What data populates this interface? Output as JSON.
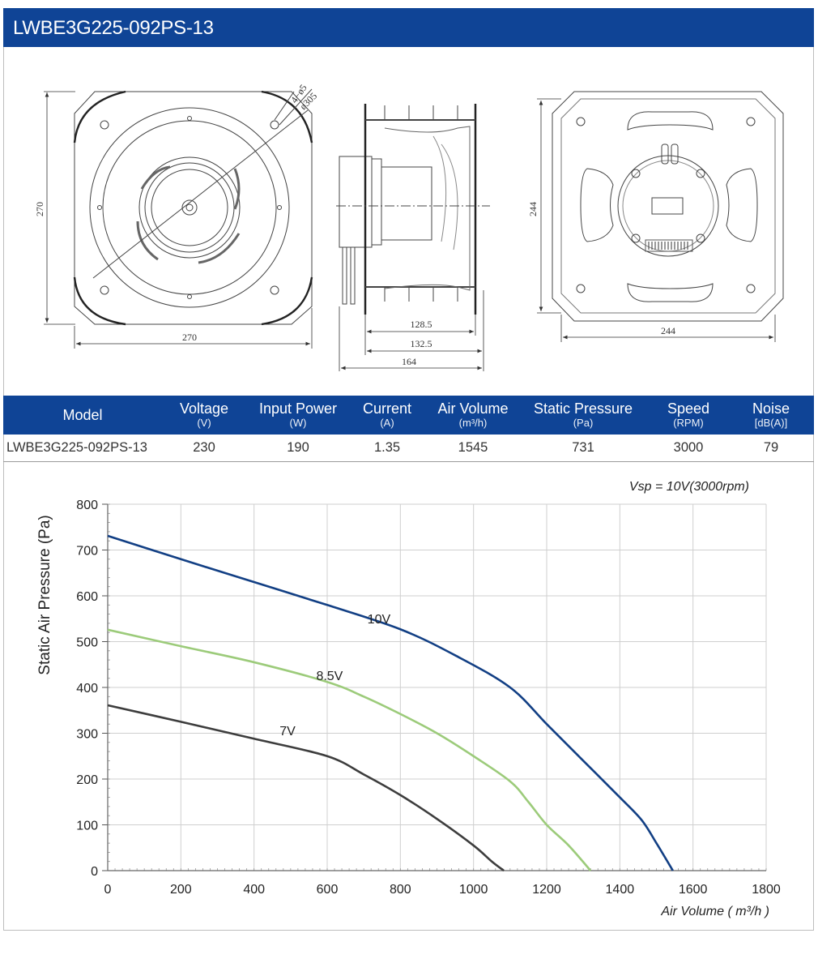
{
  "title": "LWBE3G225-092PS-13",
  "drawing": {
    "front_label_hole": "4−ø5",
    "front_label_diameter": "ø305",
    "front_height": "270",
    "front_width": "270",
    "side_dim_1": "128.5",
    "side_dim_2": "132.5",
    "side_dim_3": "164",
    "back_height": "244",
    "back_width": "244"
  },
  "spec_table": {
    "columns": [
      {
        "label": "Model",
        "unit": ""
      },
      {
        "label": "Voltage",
        "unit": "(V)"
      },
      {
        "label": "Input Power",
        "unit": "(W)"
      },
      {
        "label": "Current",
        "unit": "(A)"
      },
      {
        "label": "Air Volume",
        "unit": "(m³/h)"
      },
      {
        "label": "Static Pressure",
        "unit": "(Pa)"
      },
      {
        "label": "Speed",
        "unit": "(RPM)"
      },
      {
        "label": "Noise",
        "unit": "[dB(A)]"
      }
    ],
    "row": [
      "LWBE3G225-092PS-13",
      "230",
      "190",
      "1.35",
      "1545",
      "731",
      "3000",
      "79"
    ]
  },
  "chart_data": {
    "type": "line",
    "annotation": "Vsp = 10V(3000rpm)",
    "xlabel": "Air Volume ( m³/h )",
    "ylabel": "Static Air Pressure  (Pa)",
    "xlim": [
      0,
      1800
    ],
    "ylim": [
      0,
      800
    ],
    "x_ticks": [
      0,
      200,
      400,
      600,
      800,
      1000,
      1200,
      1400,
      1600,
      1800
    ],
    "y_ticks": [
      0,
      100,
      200,
      300,
      400,
      500,
      600,
      700,
      800
    ],
    "grid": true,
    "series": [
      {
        "name": "10V",
        "color": "#123f84",
        "x": [
          0,
          200,
          400,
          600,
          800,
          950,
          1100,
          1200,
          1300,
          1400,
          1460,
          1500,
          1545
        ],
        "y": [
          731,
          680,
          630,
          580,
          527,
          470,
          400,
          320,
          240,
          160,
          110,
          60,
          0
        ]
      },
      {
        "name": "8.5V",
        "color": "#9ccb7a",
        "x": [
          0,
          200,
          400,
          600,
          700,
          800,
          900,
          1000,
          1100,
          1150,
          1200,
          1260,
          1320
        ],
        "y": [
          526,
          490,
          455,
          412,
          380,
          342,
          300,
          250,
          195,
          150,
          100,
          55,
          0
        ]
      },
      {
        "name": "7V",
        "color": "#3d3d3d",
        "x": [
          0,
          200,
          400,
          600,
          700,
          800,
          900,
          1000,
          1050,
          1083
        ],
        "y": [
          361,
          325,
          288,
          250,
          210,
          165,
          113,
          55,
          20,
          0
        ]
      }
    ]
  }
}
